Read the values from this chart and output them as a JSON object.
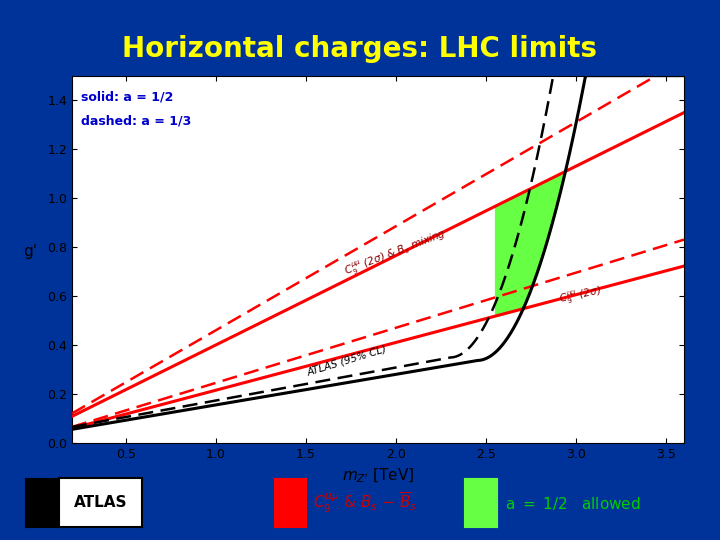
{
  "title": "Horizontal charges: LHC limits",
  "title_color": "#FFFF00",
  "bg_color": "#003399",
  "plot_bg": "#ffffff",
  "xlabel": "$m_{Z'}$ [TeV]",
  "ylabel": "g'",
  "xlim": [
    0.2,
    3.6
  ],
  "ylim": [
    0.0,
    1.5
  ],
  "xticks": [
    0.5,
    1.0,
    1.5,
    2.0,
    2.5,
    3.0,
    3.5
  ],
  "yticks": [
    0.0,
    0.2,
    0.4,
    0.6,
    0.8,
    1.0,
    1.2,
    1.4
  ],
  "solid_label": "solid: a = 1/2",
  "dashed_label": "dashed: a = 1/3",
  "label_color": "#0000CC",
  "green_color": "#66FF44",
  "legend_text_color": "#00CC00",
  "red_upper_solid_slope": 0.365,
  "red_upper_solid_intercept": 0.035,
  "red_lower_solid_slope": 0.195,
  "red_lower_solid_intercept": 0.02,
  "red_upper_dashed_slope": 0.425,
  "red_upper_dashed_intercept": 0.035,
  "red_lower_dashed_slope": 0.225,
  "red_lower_dashed_intercept": 0.02
}
